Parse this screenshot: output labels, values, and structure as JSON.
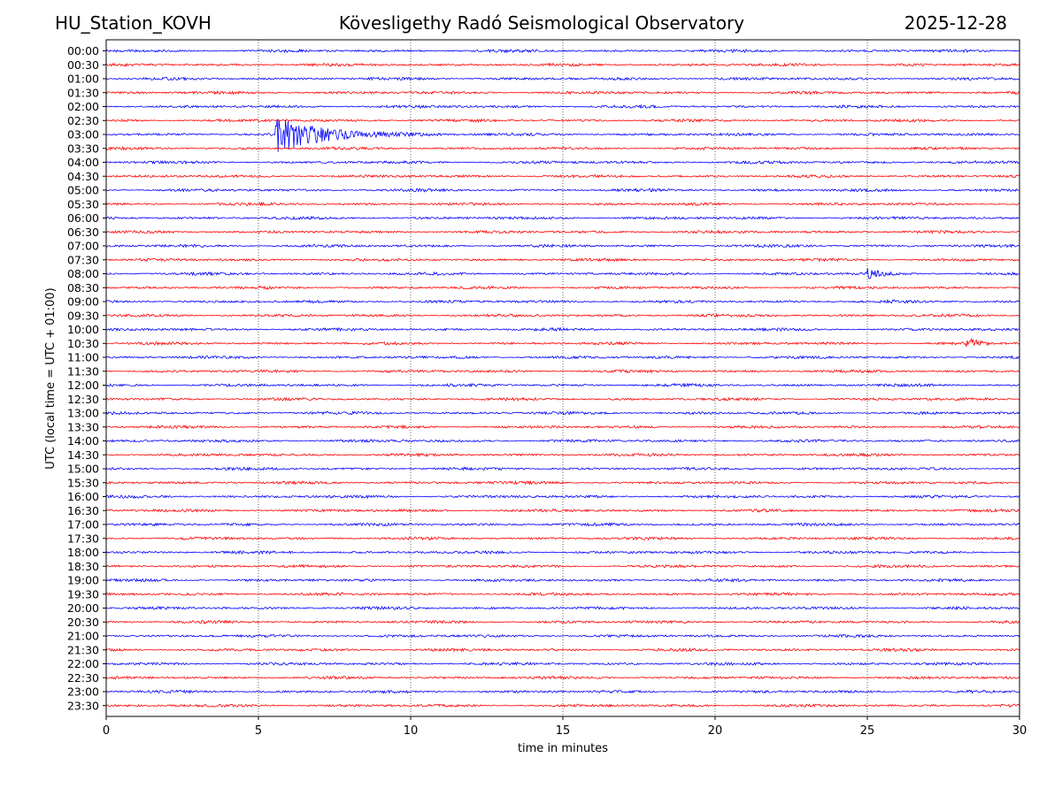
{
  "header": {
    "station": "HU_Station_KOVH",
    "title": "Kövesligethy Radó Seismological Observatory",
    "date": "2025-12-28"
  },
  "colors": {
    "trace_a": "#0000ff",
    "trace_b": "#ff0000",
    "axis": "#000000"
  },
  "chart_data": {
    "type": "line",
    "title": "Kövesligethy Radó Seismological Observatory",
    "xlabel": "time in minutes",
    "ylabel": "UTC (local time = UTC + 01:00)",
    "xlim": [
      0,
      30
    ],
    "xticks": [
      0,
      5,
      10,
      15,
      20,
      25,
      30
    ],
    "xtick_labels": [
      "0",
      "5",
      "10",
      "15",
      "20",
      "25",
      "30"
    ],
    "grid": "vertical dotted lines at x ticks",
    "rows": [
      "00:00",
      "00:30",
      "01:00",
      "01:30",
      "02:00",
      "02:30",
      "03:00",
      "03:30",
      "04:00",
      "04:30",
      "05:00",
      "05:30",
      "06:00",
      "06:30",
      "07:00",
      "07:30",
      "08:00",
      "08:30",
      "09:00",
      "09:30",
      "10:00",
      "10:30",
      "11:00",
      "11:30",
      "12:00",
      "12:30",
      "13:00",
      "13:30",
      "14:00",
      "14:30",
      "15:00",
      "15:30",
      "16:00",
      "16:30",
      "17:00",
      "17:30",
      "18:00",
      "18:30",
      "19:00",
      "19:30",
      "20:00",
      "20:30",
      "21:00",
      "21:30",
      "22:00",
      "22:30",
      "23:00",
      "23:30"
    ],
    "events": [
      {
        "row": "03:00",
        "start_minute": 5.55,
        "decay_minutes": 1.4,
        "peak": 1.0,
        "coda_end_minute": 11.0
      },
      {
        "row": "08:00",
        "start_minute": 25.0,
        "decay_minutes": 0.35,
        "peak": 0.3,
        "coda_end_minute": 26.0
      },
      {
        "row": "10:30",
        "start_minute": 28.25,
        "decay_minutes": 0.25,
        "peak": 0.45,
        "coda_end_minute": 29.0
      }
    ]
  }
}
